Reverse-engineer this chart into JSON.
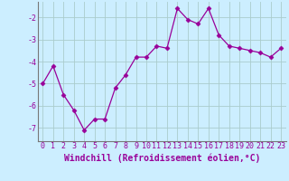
{
  "x": [
    0,
    1,
    2,
    3,
    4,
    5,
    6,
    7,
    8,
    9,
    10,
    11,
    12,
    13,
    14,
    15,
    16,
    17,
    18,
    19,
    20,
    21,
    22,
    23
  ],
  "y": [
    -5.0,
    -4.2,
    -5.5,
    -6.2,
    -7.1,
    -6.6,
    -6.6,
    -5.2,
    -4.6,
    -3.8,
    -3.8,
    -3.3,
    -3.4,
    -1.6,
    -2.1,
    -2.3,
    -1.6,
    -2.8,
    -3.3,
    -3.4,
    -3.5,
    -3.6,
    -3.8,
    -3.4
  ],
  "line_color": "#990099",
  "marker": "D",
  "marker_size": 2.5,
  "background_color": "#cceeff",
  "grid_color": "#aacccc",
  "xlabel": "Windchill (Refroidissement éolien,°C)",
  "xlabel_fontsize": 7,
  "ylabel": "",
  "ylim": [
    -7.6,
    -1.3
  ],
  "xlim": [
    -0.5,
    23.5
  ],
  "yticks": [
    -7,
    -6,
    -5,
    -4,
    -3,
    -2
  ],
  "xtick_labels": [
    "0",
    "1",
    "2",
    "3",
    "4",
    "5",
    "6",
    "7",
    "8",
    "9",
    "10",
    "11",
    "12",
    "13",
    "14",
    "15",
    "16",
    "17",
    "18",
    "19",
    "20",
    "21",
    "22",
    "23"
  ],
  "tick_fontsize": 6,
  "spine_color": "#777777"
}
